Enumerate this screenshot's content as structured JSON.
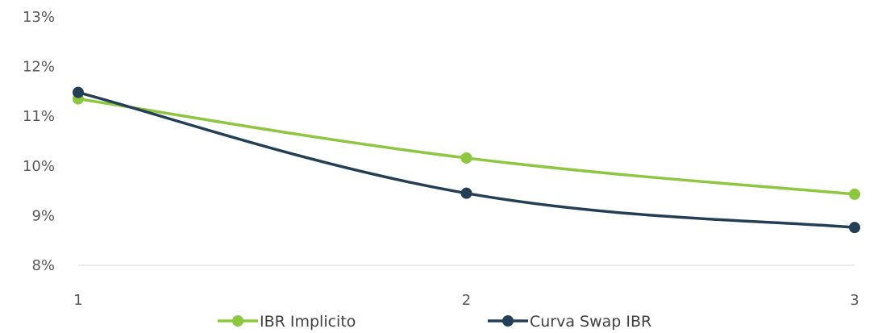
{
  "chart_data": {
    "type": "line",
    "title": "",
    "xlabel": "",
    "ylabel": "",
    "x": [
      1,
      2,
      3
    ],
    "categories": [
      "1",
      "2",
      "3"
    ],
    "ylim": [
      8,
      13
    ],
    "yticks": [
      8,
      9,
      10,
      11,
      12,
      13
    ],
    "ytick_labels": [
      "8%",
      "9%",
      "10%",
      "11%",
      "12%",
      "13%"
    ],
    "grid": false,
    "legend_position": "bottom",
    "series": [
      {
        "name": "IBR Implicito",
        "color": "#8DC63F",
        "values": [
          11.35,
          10.16,
          9.43
        ]
      },
      {
        "name": "Curva Swap IBR",
        "color": "#243F55",
        "values": [
          11.48,
          9.45,
          8.76
        ]
      }
    ]
  }
}
